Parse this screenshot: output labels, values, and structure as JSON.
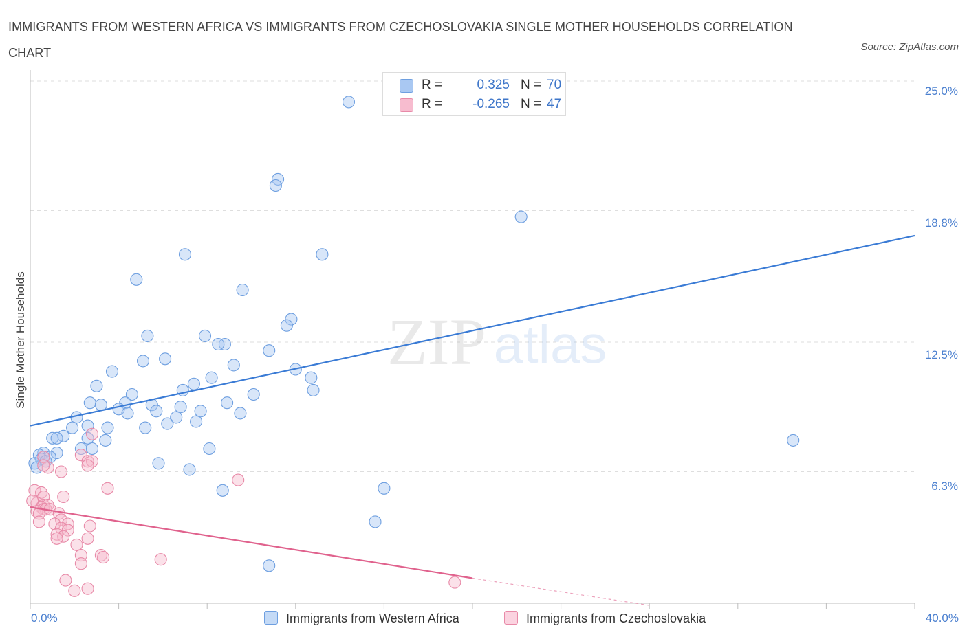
{
  "title": "IMMIGRANTS FROM WESTERN AFRICA VS IMMIGRANTS FROM CZECHOSLOVAKIA SINGLE MOTHER HOUSEHOLDS CORRELATION CHART",
  "source": "Source: ZipAtlas.com",
  "watermark": {
    "zip": "ZIP",
    "atlas": "atlas"
  },
  "legend_top": [
    {
      "r_label": "R =",
      "r_value": "0.325",
      "n_label": "N =",
      "n_value": "70",
      "color": "#a9c8f2",
      "border": "#6e9fe0"
    },
    {
      "r_label": "R =",
      "r_value": "-0.265",
      "n_label": "N =",
      "n_value": "47",
      "color": "#f7bccf",
      "border": "#e88aa8"
    }
  ],
  "legend_bottom": [
    {
      "label": "Immigrants from Western Africa",
      "color": "#a9c8f2",
      "border": "#6e9fe0"
    },
    {
      "label": "Immigrants from Czechoslovakia",
      "color": "#f7bccf",
      "border": "#e88aa8"
    }
  ],
  "chart_data": {
    "type": "scatter",
    "title": "IMMIGRANTS FROM WESTERN AFRICA VS IMMIGRANTS FROM CZECHOSLOVAKIA SINGLE MOTHER HOUSEHOLDS CORRELATION CHART",
    "xlabel": "",
    "ylabel": "Single Mother Households",
    "xlim": [
      0,
      40
    ],
    "ylim": [
      0,
      25
    ],
    "x_tick_labels": [
      "0.0%",
      "40.0%"
    ],
    "y_ticks": [
      6.3,
      12.5,
      18.8,
      25.0
    ],
    "y_tick_labels": [
      "6.3%",
      "12.5%",
      "18.8%",
      "25.0%"
    ],
    "grid": true,
    "legend_position": "top-center",
    "series": [
      {
        "name": "Immigrants from Western Africa",
        "color": "#6e9fe0",
        "fill": "#a9c8f2",
        "trend": {
          "x": [
            0,
            40
          ],
          "y": [
            8.5,
            17.6
          ],
          "color": "#3a7bd5"
        },
        "points": [
          [
            14.4,
            24.0
          ],
          [
            11.2,
            20.3
          ],
          [
            11.1,
            20.0
          ],
          [
            22.2,
            18.5
          ],
          [
            13.2,
            16.7
          ],
          [
            7.0,
            16.7
          ],
          [
            4.8,
            15.5
          ],
          [
            9.6,
            15.0
          ],
          [
            11.8,
            13.6
          ],
          [
            11.6,
            13.3
          ],
          [
            5.3,
            12.8
          ],
          [
            7.9,
            12.8
          ],
          [
            8.8,
            12.4
          ],
          [
            8.5,
            12.4
          ],
          [
            10.8,
            12.1
          ],
          [
            6.1,
            11.7
          ],
          [
            5.1,
            11.6
          ],
          [
            9.2,
            11.4
          ],
          [
            12.0,
            11.2
          ],
          [
            3.7,
            11.1
          ],
          [
            12.7,
            10.8
          ],
          [
            8.2,
            10.8
          ],
          [
            3.0,
            10.4
          ],
          [
            6.9,
            10.2
          ],
          [
            7.4,
            10.5
          ],
          [
            12.8,
            10.2
          ],
          [
            4.6,
            10.0
          ],
          [
            10.1,
            10.0
          ],
          [
            4.3,
            9.6
          ],
          [
            2.7,
            9.6
          ],
          [
            3.2,
            9.5
          ],
          [
            5.5,
            9.5
          ],
          [
            8.9,
            9.6
          ],
          [
            6.8,
            9.4
          ],
          [
            4.0,
            9.3
          ],
          [
            4.4,
            9.1
          ],
          [
            5.7,
            9.2
          ],
          [
            7.7,
            9.2
          ],
          [
            9.5,
            9.1
          ],
          [
            2.1,
            8.9
          ],
          [
            6.6,
            8.9
          ],
          [
            7.5,
            8.7
          ],
          [
            6.2,
            8.6
          ],
          [
            3.5,
            8.4
          ],
          [
            5.2,
            8.4
          ],
          [
            1.9,
            8.4
          ],
          [
            2.6,
            8.5
          ],
          [
            1.5,
            8.0
          ],
          [
            1.0,
            7.9
          ],
          [
            2.6,
            7.9
          ],
          [
            1.2,
            7.9
          ],
          [
            3.4,
            7.8
          ],
          [
            2.3,
            7.4
          ],
          [
            2.8,
            7.4
          ],
          [
            8.1,
            7.4
          ],
          [
            0.6,
            7.2
          ],
          [
            1.2,
            7.2
          ],
          [
            0.4,
            7.1
          ],
          [
            0.9,
            7.0
          ],
          [
            0.5,
            6.9
          ],
          [
            0.2,
            6.7
          ],
          [
            0.7,
            6.8
          ],
          [
            5.8,
            6.7
          ],
          [
            7.2,
            6.4
          ],
          [
            34.5,
            7.8
          ],
          [
            16.0,
            5.5
          ],
          [
            8.7,
            5.4
          ],
          [
            15.6,
            3.9
          ],
          [
            10.8,
            1.8
          ],
          [
            0.3,
            6.5
          ]
        ]
      },
      {
        "name": "Immigrants from Czechoslovakia",
        "color": "#e88aa8",
        "fill": "#f7bccf",
        "trend": {
          "x": [
            0,
            20
          ],
          "y": [
            4.6,
            1.2
          ],
          "color": "#e0628d"
        },
        "trend_dashed": {
          "x": [
            20,
            28
          ],
          "y": [
            1.2,
            -0.1
          ]
        },
        "points": [
          [
            2.8,
            8.1
          ],
          [
            2.3,
            7.1
          ],
          [
            2.6,
            6.8
          ],
          [
            2.8,
            6.8
          ],
          [
            2.6,
            6.6
          ],
          [
            0.6,
            7.0
          ],
          [
            0.8,
            6.5
          ],
          [
            1.4,
            6.3
          ],
          [
            0.6,
            6.6
          ],
          [
            9.4,
            5.9
          ],
          [
            3.5,
            5.5
          ],
          [
            0.2,
            5.4
          ],
          [
            0.5,
            5.3
          ],
          [
            0.6,
            5.1
          ],
          [
            1.5,
            5.1
          ],
          [
            0.3,
            4.8
          ],
          [
            0.6,
            4.7
          ],
          [
            0.8,
            4.7
          ],
          [
            0.5,
            4.6
          ],
          [
            0.6,
            4.5
          ],
          [
            0.7,
            4.5
          ],
          [
            0.9,
            4.5
          ],
          [
            0.3,
            4.4
          ],
          [
            0.4,
            4.3
          ],
          [
            1.3,
            4.3
          ],
          [
            1.4,
            4.0
          ],
          [
            0.4,
            3.9
          ],
          [
            1.1,
            3.8
          ],
          [
            1.7,
            3.8
          ],
          [
            2.7,
            3.7
          ],
          [
            1.4,
            3.6
          ],
          [
            1.7,
            3.5
          ],
          [
            1.2,
            3.3
          ],
          [
            1.5,
            3.2
          ],
          [
            1.2,
            3.1
          ],
          [
            2.6,
            3.1
          ],
          [
            2.1,
            2.8
          ],
          [
            3.2,
            2.3
          ],
          [
            2.3,
            2.3
          ],
          [
            3.3,
            2.2
          ],
          [
            5.9,
            2.1
          ],
          [
            2.3,
            1.9
          ],
          [
            1.6,
            1.1
          ],
          [
            2.6,
            0.7
          ],
          [
            2.0,
            0.6
          ],
          [
            19.2,
            1.0
          ],
          [
            0.1,
            4.9
          ]
        ]
      }
    ]
  }
}
